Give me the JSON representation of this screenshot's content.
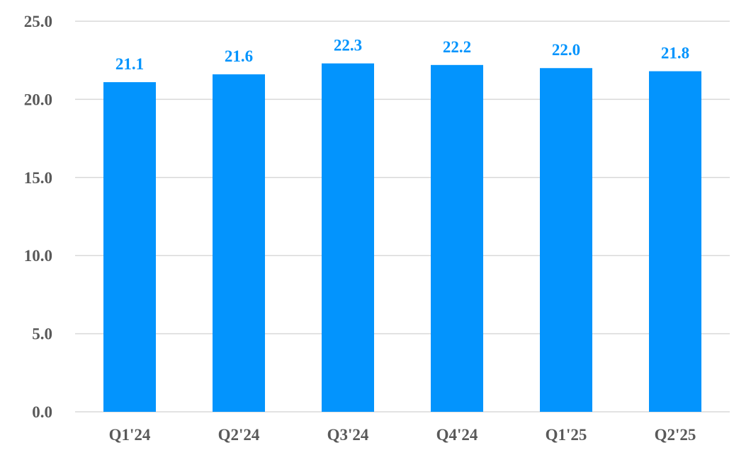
{
  "colors": {
    "bar": "#0394fd",
    "data_label": "#0394fd",
    "tick_text": "#595959",
    "grid": "#d9d9d9"
  },
  "chart_data": {
    "type": "bar",
    "title": "",
    "xlabel": "",
    "ylabel": "",
    "categories": [
      "Q1'24",
      "Q2'24",
      "Q3'24",
      "Q4'24",
      "Q1'25",
      "Q2'25"
    ],
    "values": [
      21.1,
      21.6,
      22.3,
      22.2,
      22.0,
      21.8
    ],
    "value_labels": [
      "21.1",
      "21.6",
      "22.3",
      "22.2",
      "22.0",
      "21.8"
    ],
    "ylim": [
      0,
      25
    ],
    "yticks": [
      0,
      5,
      10,
      15,
      20,
      25
    ],
    "ytick_labels": [
      "0.0",
      "5.0",
      "10.0",
      "15.0",
      "20.0",
      "25.0"
    ],
    "grid": true,
    "legend": "none"
  }
}
